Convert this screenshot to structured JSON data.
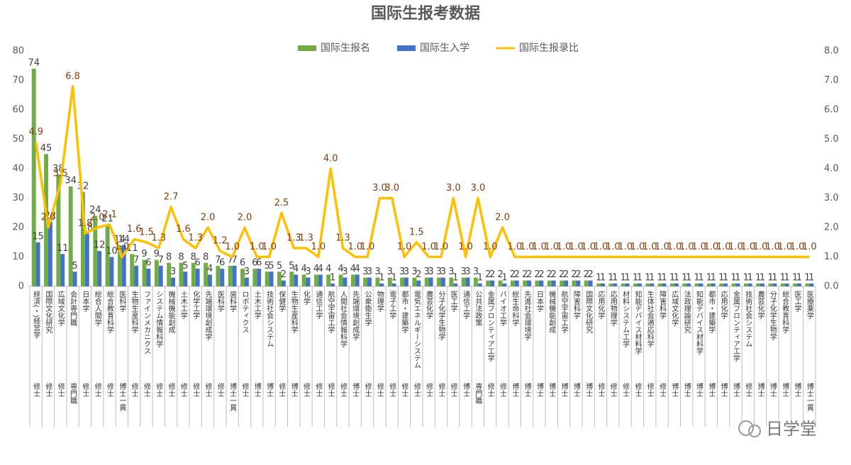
{
  "chart_data": {
    "type": "bar",
    "title": "国际生报考数据",
    "watermark": "日学堂",
    "categories": [
      "経済(・)経営学",
      "国際文化研究",
      "広域文化学",
      "会計専門職",
      "日本学",
      "総合人間学",
      "総合教育科学",
      "医科学",
      "生物生産科学",
      "ファインメカニクス",
      "システム情報科学",
      "機械機能創成",
      "土木工学",
      "化学工学",
      "先端環境創成学",
      "医科学",
      "歯科学",
      "ロボティクス",
      "土木工学",
      "技術社会システム",
      "保健学",
      "生物生産科学",
      "化学",
      "通信工学",
      "航空宇宙工学",
      "人間社会情報科学",
      "先端環境創成学",
      "公衆衛生学",
      "物理学",
      "電子工学",
      "都市・建築学",
      "電気エネルギーシステム",
      "農芸化学",
      "分子化学生物学",
      "医工学",
      "通信工学",
      "公共法政策",
      "金属フロンティア工学",
      "バイオ工学",
      "総生命科学",
      "先進社会環境学",
      "日本学",
      "機械機能創成",
      "航空宇宙工学",
      "障害科学",
      "国際文化研究",
      "応用化学",
      "応用物理学",
      "材料システム工学",
      "知能デバイス材料学",
      "生体社会適応科学",
      "障害科学",
      "広域文化学",
      "法政理論研究",
      "知能デバイス材料学",
      "都市・建築学",
      "応用化学",
      "金属フロンティア工学",
      "技術社会システム",
      "農芸化学",
      "分子化学生物学",
      "総合教育科学",
      "医工学",
      "医療薬学"
    ],
    "levels": [
      "修士",
      "修士",
      "修士",
      "専門職",
      "修士",
      "修士",
      "修士",
      "博士一貫",
      "修士",
      "修士",
      "修士",
      "修士",
      "修士",
      "修士",
      "修士",
      "修士",
      "博士一貫",
      "修士",
      "博士",
      "博士",
      "修士",
      "博士",
      "修士",
      "修士",
      "修士",
      "修士",
      "博士",
      "修士",
      "修士",
      "修士",
      "修士",
      "修士",
      "修士",
      "修士",
      "修士",
      "博士",
      "専門職",
      "修士",
      "修士",
      "博士",
      "博士",
      "博士",
      "博士",
      "博士",
      "博士",
      "博士",
      "修士",
      "修士",
      "修士",
      "修士",
      "修士",
      "修士",
      "博士",
      "博士",
      "博士",
      "博士",
      "博士",
      "博士",
      "修士",
      "博士",
      "博士",
      "博士",
      "博士",
      "博士一貫"
    ],
    "series": [
      {
        "name": "国际生报名",
        "color": "#70ad47",
        "values": [
          74,
          45,
          38,
          34,
          32,
          24,
          21,
          14,
          11,
          9,
          9,
          8,
          8,
          8,
          8,
          7,
          7,
          6,
          6,
          5,
          5,
          5,
          4,
          4,
          4,
          4,
          4,
          3,
          3,
          3,
          3,
          3,
          3,
          3,
          3,
          3,
          3,
          2,
          2,
          2,
          2,
          2,
          2,
          2,
          2,
          2,
          1,
          1,
          1,
          1,
          1,
          1,
          1,
          1,
          1,
          1,
          1,
          1,
          1,
          1,
          1,
          1,
          1,
          1
        ]
      },
      {
        "name": "国际生入学",
        "color": "#4472c4",
        "values": [
          15,
          22,
          11,
          5,
          18,
          12,
          10,
          14,
          7,
          6,
          7,
          3,
          5,
          6,
          4,
          6,
          7,
          3,
          6,
          5,
          2,
          4,
          3,
          4,
          1,
          3,
          4,
          3,
          1,
          1,
          3,
          2,
          3,
          3,
          1,
          3,
          1,
          2,
          1,
          2,
          2,
          2,
          2,
          2,
          2,
          2,
          1,
          1,
          1,
          1,
          1,
          1,
          1,
          1,
          1,
          1,
          1,
          1,
          1,
          1,
          1,
          1,
          1,
          1
        ]
      },
      {
        "name": "国际生报录比",
        "color": "#ffc000",
        "axis": "y2",
        "type": "line",
        "values": [
          4.9,
          2.0,
          3.5,
          6.8,
          1.8,
          2.0,
          2.1,
          1.0,
          1.6,
          1.5,
          1.3,
          2.7,
          1.6,
          1.3,
          2.0,
          1.2,
          1.0,
          2.0,
          1.0,
          1.0,
          2.5,
          1.3,
          1.3,
          1.0,
          4.0,
          1.3,
          1.0,
          1.0,
          3.0,
          3.0,
          1.0,
          1.5,
          1.0,
          1.0,
          3.0,
          1.0,
          3.0,
          1.0,
          2.0,
          1.0,
          1.0,
          1.0,
          1.0,
          1.0,
          1.0,
          1.0,
          1.0,
          1.0,
          1.0,
          1.0,
          1.0,
          1.0,
          1.0,
          1.0,
          1.0,
          1.0,
          1.0,
          1.0,
          1.0,
          1.0,
          1.0,
          1.0,
          1.0,
          1.0
        ],
        "value_labels": [
          "4.9",
          "2.0",
          "3.5",
          "6.8",
          "1.8",
          "2.0",
          "2.1",
          "1.0",
          "1.6",
          "1.5",
          "1.3",
          "2.7",
          "1.6",
          "1.3",
          "2.0",
          "1.2",
          "1.0",
          "2.0",
          "1.0",
          "1.0",
          "2.5",
          "1.3",
          "1.3",
          "1.0",
          "4.0",
          "1.3",
          "1.0",
          "1.0",
          "3.0",
          "3.0",
          "1.0",
          "1.5",
          "1.0",
          "1.0",
          "3.0",
          "1.0",
          "3.0",
          "1.0",
          "2.0",
          "1.0",
          "1.0",
          "1.0",
          "1.0",
          "1.0",
          "1.0",
          "1.0",
          "1.0",
          "1.0",
          "1.0",
          "1.0",
          "1.0",
          "1.0",
          "1.0",
          "1.0",
          "1.0",
          "1.0",
          "1.0",
          "1.0",
          "1.0",
          "1.0",
          "1.0",
          "1.0",
          "1.0",
          "1.0"
        ]
      }
    ],
    "ylim": [
      0,
      80
    ],
    "yticks": [
      0,
      10,
      20,
      30,
      40,
      50,
      60,
      70,
      80
    ],
    "y2lim": [
      0,
      8
    ],
    "y2ticks": [
      {
        "value": 0,
        "label": "0.0"
      },
      {
        "value": 1,
        "label": "1.0"
      },
      {
        "value": 2,
        "label": "2.0"
      },
      {
        "value": 3,
        "label": "3.0"
      },
      {
        "value": 4,
        "label": "4.0"
      },
      {
        "value": 5,
        "label": "5.0"
      },
      {
        "value": 6,
        "label": "6.0"
      },
      {
        "value": 7,
        "label": "7.0"
      },
      {
        "value": 8,
        "label": "8.0"
      }
    ]
  }
}
